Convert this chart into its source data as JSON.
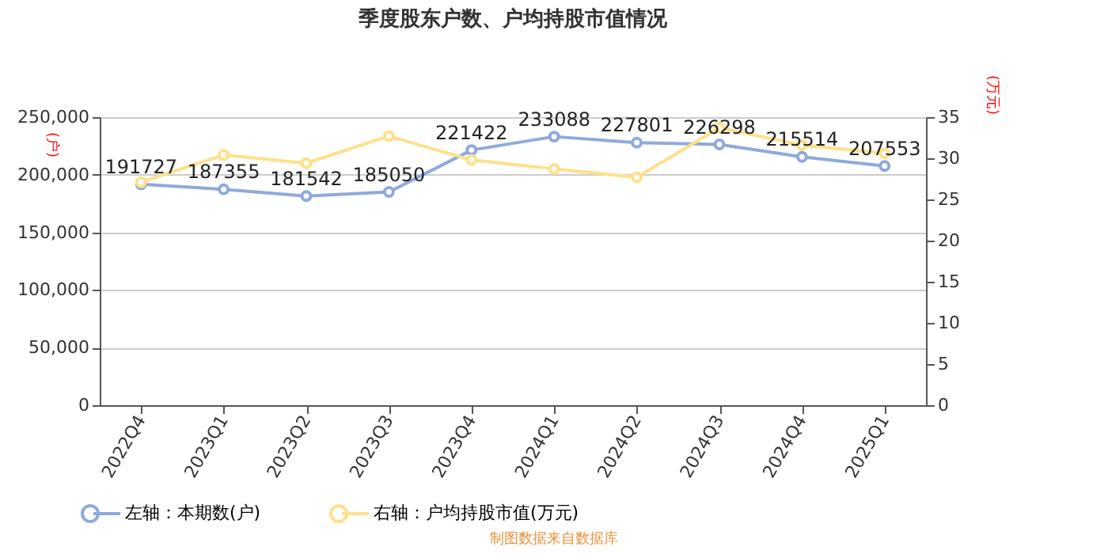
{
  "chart_data": {
    "type": "line",
    "title": "季度股东户数、户均持股市值情况",
    "ylabel": "(户)",
    "y2label": "(万元)",
    "categories": [
      "2022Q4",
      "2023Q1",
      "2023Q2",
      "2023Q3",
      "2023Q4",
      "2024Q1",
      "2024Q2",
      "2024Q3",
      "2024Q4",
      "2025Q1"
    ],
    "series": [
      {
        "name": "左轴：本期数(户)",
        "color": "#8eaadc",
        "values": [
          191727,
          187355,
          181542,
          185050,
          221422,
          233088,
          227801,
          226298,
          215514,
          207553
        ],
        "value_labels": [
          "191727",
          "187355",
          "181542",
          "185050",
          "221422",
          "233088",
          "227801",
          "226298",
          "215514",
          "207553"
        ]
      },
      {
        "name": "右轴：户均持股市值(万元)",
        "color": "#ffe08a",
        "axis": "y2",
        "values": [
          27.1,
          30.4,
          29.4,
          32.7,
          29.8,
          28.7,
          27.7,
          33.7,
          31.6,
          30.6
        ]
      }
    ],
    "ylim": [
      0,
      250000
    ],
    "yticks": [
      0,
      {
        "value": 50000,
        "label": "50,000"
      },
      {
        "value": 100000,
        "label": "100,000"
      },
      {
        "value": 150000,
        "label": "150,000"
      },
      {
        "value": 200000,
        "label": "200,000"
      },
      {
        "value": 250000,
        "label": "250,000"
      }
    ],
    "y2lim": [
      0,
      35
    ],
    "y2ticks": [
      0,
      5,
      10,
      15,
      20,
      25,
      30,
      35
    ],
    "grid": "y",
    "legend": "bottom",
    "marker": "circle",
    "line_style": "solid",
    "annotations": [
      "制图数据来自数据库"
    ]
  }
}
